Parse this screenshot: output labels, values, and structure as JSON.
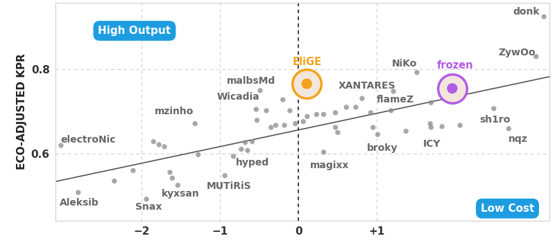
{
  "chart_data": {
    "type": "scatter",
    "ylabel": "ECO-ADJUSTED KPR",
    "annotations": [
      "High Output",
      "Low Cost"
    ],
    "annotation_color": "#1e9ce0",
    "color": "#8a8a8a",
    "grid": true,
    "xlim": [
      -3.1,
      3.2
    ],
    "ylim": [
      0.44,
      0.96
    ],
    "xticks": [
      {
        "value": -2,
        "label": "−2"
      },
      {
        "value": -1,
        "label": "−1"
      },
      0,
      {
        "value": 1,
        "label": "+1"
      }
    ],
    "yticks": [
      0.6,
      0.8
    ],
    "trend": {
      "x": [
        -3.1,
        3.2
      ],
      "values": [
        0.533,
        0.783
      ],
      "color": "#555555"
    },
    "x": [
      3.13,
      3.03,
      1.51,
      1.96,
      0.105,
      0.81,
      1.21,
      -0.49,
      -0.54,
      -1.32,
      -3.03,
      -2.81,
      -1.94,
      -1.54,
      -0.94,
      -0.65,
      0.32,
      1.01,
      1.69,
      2.49,
      2.68,
      -2.35,
      -2.11,
      -1.85,
      -1.78,
      -1.71,
      -1.64,
      -1.61,
      -1.28,
      -0.83,
      -0.73,
      -0.68,
      -0.59,
      -0.53,
      -0.41,
      -0.35,
      -0.29,
      -0.2,
      -0.18,
      -0.11,
      -0.04,
      0.06,
      0.11,
      0.23,
      0.32,
      0.47,
      0.47,
      0.5,
      0.61,
      0.73,
      0.92,
      0.95,
      1.18,
      1.37,
      1.68,
      1.83,
      2.06,
      1.69
    ],
    "values": [
      0.926,
      0.831,
      0.793,
      0.755,
      0.766,
      0.731,
      0.748,
      0.75,
      0.705,
      0.671,
      0.619,
      0.507,
      0.491,
      0.524,
      0.547,
      0.607,
      0.603,
      0.645,
      0.662,
      0.707,
      0.659,
      0.534,
      0.559,
      0.628,
      0.621,
      0.616,
      0.555,
      0.541,
      0.597,
      0.593,
      0.61,
      0.626,
      0.628,
      0.679,
      0.702,
      0.662,
      0.667,
      0.728,
      0.667,
      0.702,
      0.671,
      0.676,
      0.688,
      0.693,
      0.693,
      0.697,
      0.662,
      0.65,
      0.71,
      0.71,
      0.697,
      0.662,
      0.702,
      0.653,
      0.671,
      0.664,
      0.667,
      0.721
    ],
    "labels": [
      "donk",
      "ZywOo",
      "NiKo",
      "frozen",
      "EliGE",
      "XANTARES",
      "flameZ",
      "malbsMd",
      "Wicadia",
      "mzinho",
      "electroNic",
      "Aleksib",
      "Snax",
      "kyxsan",
      "MUTiRiS",
      "hyped",
      "magixx",
      "broky",
      "ICY",
      "sh1ro",
      "nqz",
      null,
      null,
      null,
      null,
      null,
      null,
      null,
      null,
      null,
      null,
      null,
      null,
      null,
      null,
      null,
      null,
      null,
      null,
      null,
      null,
      null,
      null,
      null,
      null,
      null,
      null,
      null,
      null,
      null,
      null,
      null,
      null,
      null,
      null,
      null,
      null,
      null
    ],
    "colors": [
      "#8a8a8a",
      "#8a8a8a",
      "#8a8a8a",
      "#b35ce6",
      "#f2a31b",
      "#8a8a8a",
      "#8a8a8a",
      "#8a8a8a",
      "#8a8a8a",
      "#8a8a8a",
      "#8a8a8a",
      "#8a8a8a",
      "#8a8a8a",
      "#8a8a8a",
      "#8a8a8a",
      "#8a8a8a",
      "#8a8a8a",
      "#8a8a8a",
      "#8a8a8a",
      "#8a8a8a",
      "#8a8a8a",
      "#8a8a8a",
      "#8a8a8a",
      "#8a8a8a",
      "#8a8a8a",
      "#8a8a8a",
      "#8a8a8a",
      "#8a8a8a",
      "#8a8a8a",
      "#8a8a8a",
      "#8a8a8a",
      "#8a8a8a",
      "#8a8a8a",
      "#8a8a8a",
      "#8a8a8a",
      "#8a8a8a",
      "#8a8a8a",
      "#8a8a8a",
      "#8a8a8a",
      "#8a8a8a",
      "#8a8a8a",
      "#8a8a8a",
      "#8a8a8a",
      "#8a8a8a",
      "#8a8a8a",
      "#8a8a8a",
      "#8a8a8a",
      "#8a8a8a",
      "#8a8a8a",
      "#8a8a8a",
      "#8a8a8a",
      "#8a8a8a",
      "#8a8a8a",
      "#8a8a8a",
      "#8a8a8a",
      "#8a8a8a",
      "#8a8a8a",
      "#8a8a8a"
    ]
  }
}
